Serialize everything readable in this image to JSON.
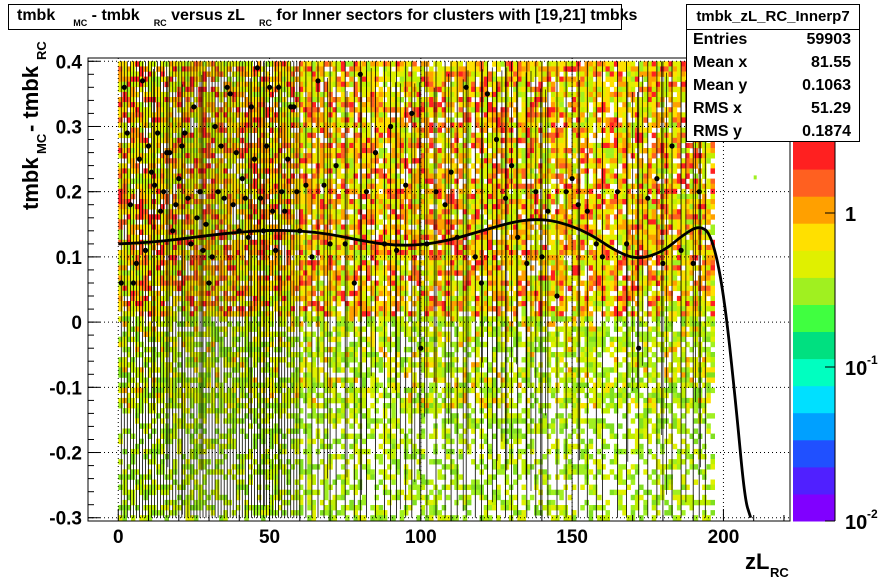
{
  "title": {
    "parts": [
      "tmbk",
      "MC",
      " - tmbk",
      "RC",
      " versus zL",
      "RC",
      " for Inner sectors for clusters with [19,21] tmbks"
    ]
  },
  "stats": {
    "name": "tmbk_zL_RC_Innerp7",
    "rows": [
      {
        "label": "Entries",
        "value": "59903"
      },
      {
        "label": "Mean x",
        "value": "81.55"
      },
      {
        "label": "Mean y",
        "value": "0.1063"
      },
      {
        "label": "RMS x",
        "value": "51.29"
      },
      {
        "label": "RMS y",
        "value": "0.1874"
      }
    ]
  },
  "axes": {
    "xlabel": {
      "main": "zL",
      "sub": "RC"
    },
    "ylabel": {
      "main1": "tmbk",
      "sub1": "MC",
      "main2": " - tmbk",
      "sub2": "RC"
    },
    "xticks": [
      "0",
      "50",
      "100",
      "150",
      "200"
    ],
    "yticks": [
      "-0.3",
      "-0.2",
      "-0.1",
      "0",
      "0.1",
      "0.2",
      "0.3",
      "0.4"
    ],
    "zticks": [
      {
        "base": "10",
        "exp": "-2"
      },
      {
        "base": "10",
        "exp": "-1"
      },
      {
        "base": "1",
        "exp": ""
      },
      {
        "base": "",
        "exp": ""
      }
    ]
  },
  "chart_data": {
    "type": "heatmap",
    "title": "tmbk_MC - tmbk_RC versus zL_RC for Inner sectors for clusters with [19,21] tmbks",
    "xlabel": "zL_RC",
    "ylabel": "tmbk_MC - tmbk_RC",
    "xlim": [
      -10,
      222
    ],
    "ylim": [
      -0.305,
      0.405
    ],
    "zscale": "log",
    "zlim": [
      0.01,
      10
    ],
    "grid": true,
    "x_tick_values": [
      0,
      50,
      100,
      150,
      200
    ],
    "y_tick_values": [
      -0.3,
      -0.2,
      -0.1,
      0,
      0.1,
      0.2,
      0.3,
      0.4
    ],
    "heatmap_x_range": [
      0,
      196
    ],
    "heatmap_y_range": [
      -0.3,
      0.4
    ],
    "colors": [
      "#8000ff",
      "#5020ff",
      "#2050ff",
      "#00a0ff",
      "#00e0ff",
      "#00ffc0",
      "#00e080",
      "#40ff40",
      "#a0f020",
      "#e0f000",
      "#ffe000",
      "#ffa000",
      "#ff6020",
      "#ff2020"
    ],
    "fit_curve": {
      "x": [
        0,
        10,
        20,
        30,
        40,
        50,
        60,
        70,
        80,
        90,
        100,
        110,
        120,
        130,
        137,
        145,
        155,
        165,
        172,
        180,
        187,
        192,
        196,
        200,
        204,
        207,
        209
      ],
      "y": [
        0.12,
        0.122,
        0.127,
        0.133,
        0.138,
        0.141,
        0.14,
        0.135,
        0.125,
        0.118,
        0.118,
        0.126,
        0.14,
        0.153,
        0.158,
        0.155,
        0.138,
        0.107,
        0.096,
        0.108,
        0.135,
        0.148,
        0.135,
        0.05,
        -0.12,
        -0.27,
        -0.3
      ]
    },
    "profile_points": {
      "x": [
        1,
        2,
        3,
        4,
        5,
        6,
        7,
        8,
        9,
        10,
        11,
        12,
        13,
        14,
        15,
        16,
        17,
        18,
        19,
        20,
        21,
        22,
        23,
        24,
        25,
        26,
        27,
        28,
        29,
        30,
        31,
        32,
        33,
        34,
        35,
        36,
        37,
        38,
        39,
        40,
        41,
        42,
        43,
        44,
        45,
        46,
        47,
        48,
        49,
        50,
        51,
        52,
        53,
        54,
        55,
        56,
        57,
        58,
        59,
        60,
        62,
        64,
        66,
        68,
        70,
        72,
        75,
        78,
        80,
        82,
        85,
        88,
        90,
        92,
        95,
        97,
        100,
        102,
        105,
        108,
        110,
        112,
        115,
        118,
        120,
        122,
        125,
        128,
        130,
        132,
        135,
        138,
        140,
        142,
        145,
        148,
        150,
        152,
        155,
        158,
        160,
        165,
        168,
        172,
        175,
        178,
        180,
        183,
        186,
        190,
        192,
        194
      ],
      "y": [
        0.06,
        0.36,
        0.29,
        0.18,
        0.06,
        0.09,
        0.25,
        0.37,
        0.11,
        0.27,
        0.23,
        0.21,
        0.29,
        0.17,
        0.2,
        0.26,
        0.26,
        0.14,
        0.18,
        0.22,
        0.27,
        0.29,
        0.19,
        0.12,
        0.33,
        0.16,
        0.2,
        0.11,
        0.15,
        0.06,
        0.1,
        0.3,
        0.2,
        0.27,
        0.19,
        0.36,
        0.35,
        0.18,
        0.26,
        0.14,
        0.22,
        0.19,
        0.13,
        0.33,
        0.25,
        0.39,
        0.19,
        0.14,
        0.27,
        0.36,
        0.17,
        0.11,
        0.36,
        0.2,
        0.17,
        0.25,
        0.33,
        0.33,
        0.2,
        0.14,
        0.21,
        0.1,
        0.37,
        0.21,
        0.12,
        0.24,
        0.12,
        0.06,
        0.38,
        0.2,
        0.26,
        0.12,
        0.3,
        0.11,
        0.21,
        0.32,
        -0.04,
        0.12,
        0.2,
        0.18,
        0.23,
        0.13,
        0.36,
        0.1,
        0.06,
        0.35,
        0.28,
        0.19,
        0.24,
        0.13,
        0.09,
        0.2,
        0.1,
        0.17,
        0.04,
        0.2,
        0.22,
        0.18,
        0.17,
        0.12,
        0.1,
        0.2,
        0.12,
        -0.04,
        0.19,
        0.22,
        0.09,
        0.27,
        0.11,
        0.09,
        0.2,
        0.36
      ]
    }
  }
}
